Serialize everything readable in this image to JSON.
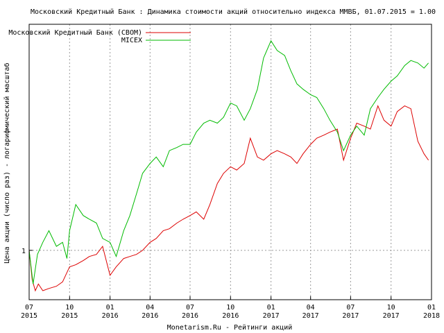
{
  "chart_data": {
    "type": "line",
    "title": "Московский Кредитный Банк : Динамика стоимости акций относительно индекса ММВБ, 01.07.2015 = 1.00",
    "xlabel": "Monetarism.Ru - Рейтинги акций",
    "ylabel": "Цена акции (число раз) - логарифмический масштаб",
    "y_scale": "log",
    "ylim": [
      0.885,
      1.75
    ],
    "xlim": [
      "2015-07-01",
      "2018-01-01"
    ],
    "y_ticks": [
      {
        "value": 1,
        "label": "1"
      }
    ],
    "x_ticks": [
      {
        "date": "2015-07-01",
        "label": "07\n2015"
      },
      {
        "date": "2015-10-01",
        "label": "10\n2015"
      },
      {
        "date": "2016-01-01",
        "label": "01\n2016"
      },
      {
        "date": "2016-04-01",
        "label": "04\n2016"
      },
      {
        "date": "2016-07-01",
        "label": "07\n2016"
      },
      {
        "date": "2016-10-01",
        "label": "10\n2016"
      },
      {
        "date": "2017-01-01",
        "label": "01\n2017"
      },
      {
        "date": "2017-04-01",
        "label": "04\n2017"
      },
      {
        "date": "2017-07-01",
        "label": "07\n2017"
      },
      {
        "date": "2017-10-01",
        "label": "10\n2017"
      },
      {
        "date": "2018-01-01",
        "label": "01\n2018"
      }
    ],
    "grid": true,
    "legend_position": "top-left",
    "series": [
      {
        "name": "Московский Кредитный Банк (CBOM)",
        "color": "#dd0000",
        "points": [
          [
            "2015-07-01",
            1.0
          ],
          [
            "2015-07-08",
            0.93
          ],
          [
            "2015-07-15",
            0.905
          ],
          [
            "2015-07-22",
            0.92
          ],
          [
            "2015-08-01",
            0.905
          ],
          [
            "2015-08-15",
            0.91
          ],
          [
            "2015-09-01",
            0.915
          ],
          [
            "2015-09-15",
            0.925
          ],
          [
            "2015-10-01",
            0.96
          ],
          [
            "2015-10-15",
            0.965
          ],
          [
            "2015-11-01",
            0.975
          ],
          [
            "2015-11-15",
            0.985
          ],
          [
            "2015-12-01",
            0.99
          ],
          [
            "2015-12-15",
            1.01
          ],
          [
            "2016-01-01",
            0.94
          ],
          [
            "2016-01-15",
            0.96
          ],
          [
            "2016-02-01",
            0.98
          ],
          [
            "2016-02-15",
            0.985
          ],
          [
            "2016-03-01",
            0.99
          ],
          [
            "2016-03-15",
            1.0
          ],
          [
            "2016-04-01",
            1.02
          ],
          [
            "2016-04-15",
            1.03
          ],
          [
            "2016-05-01",
            1.05
          ],
          [
            "2016-05-15",
            1.055
          ],
          [
            "2016-06-01",
            1.07
          ],
          [
            "2016-06-15",
            1.08
          ],
          [
            "2016-07-01",
            1.09
          ],
          [
            "2016-07-15",
            1.1
          ],
          [
            "2016-08-01",
            1.08
          ],
          [
            "2016-08-15",
            1.12
          ],
          [
            "2016-09-01",
            1.18
          ],
          [
            "2016-09-15",
            1.21
          ],
          [
            "2016-10-01",
            1.23
          ],
          [
            "2016-10-15",
            1.22
          ],
          [
            "2016-11-01",
            1.24
          ],
          [
            "2016-11-15",
            1.32
          ],
          [
            "2016-12-01",
            1.26
          ],
          [
            "2016-12-15",
            1.25
          ],
          [
            "2017-01-01",
            1.27
          ],
          [
            "2017-01-15",
            1.28
          ],
          [
            "2017-02-01",
            1.27
          ],
          [
            "2017-02-15",
            1.26
          ],
          [
            "2017-03-01",
            1.24
          ],
          [
            "2017-03-15",
            1.27
          ],
          [
            "2017-04-01",
            1.3
          ],
          [
            "2017-04-15",
            1.32
          ],
          [
            "2017-05-01",
            1.33
          ],
          [
            "2017-05-15",
            1.34
          ],
          [
            "2017-06-01",
            1.35
          ],
          [
            "2017-06-15",
            1.25
          ],
          [
            "2017-07-01",
            1.32
          ],
          [
            "2017-07-15",
            1.37
          ],
          [
            "2017-08-01",
            1.36
          ],
          [
            "2017-08-15",
            1.35
          ],
          [
            "2017-09-01",
            1.43
          ],
          [
            "2017-09-15",
            1.38
          ],
          [
            "2017-10-01",
            1.36
          ],
          [
            "2017-10-15",
            1.41
          ],
          [
            "2017-11-01",
            1.43
          ],
          [
            "2017-11-15",
            1.42
          ],
          [
            "2017-12-01",
            1.31
          ],
          [
            "2017-12-15",
            1.27
          ],
          [
            "2017-12-25",
            1.25
          ]
        ]
      },
      {
        "name": "MICEX",
        "color": "#00bb00",
        "points": [
          [
            "2015-07-01",
            1.0
          ],
          [
            "2015-07-10",
            0.92
          ],
          [
            "2015-07-20",
            0.99
          ],
          [
            "2015-08-01",
            1.02
          ],
          [
            "2015-08-15",
            1.05
          ],
          [
            "2015-09-01",
            1.01
          ],
          [
            "2015-09-15",
            1.02
          ],
          [
            "2015-09-25",
            0.98
          ],
          [
            "2015-10-01",
            1.05
          ],
          [
            "2015-10-15",
            1.12
          ],
          [
            "2015-11-01",
            1.09
          ],
          [
            "2015-11-15",
            1.08
          ],
          [
            "2015-12-01",
            1.07
          ],
          [
            "2015-12-15",
            1.03
          ],
          [
            "2016-01-01",
            1.02
          ],
          [
            "2016-01-15",
            0.985
          ],
          [
            "2016-02-01",
            1.05
          ],
          [
            "2016-02-15",
            1.09
          ],
          [
            "2016-03-01",
            1.15
          ],
          [
            "2016-03-15",
            1.21
          ],
          [
            "2016-04-01",
            1.24
          ],
          [
            "2016-04-15",
            1.26
          ],
          [
            "2016-05-01",
            1.23
          ],
          [
            "2016-05-15",
            1.28
          ],
          [
            "2016-06-01",
            1.29
          ],
          [
            "2016-06-15",
            1.3
          ],
          [
            "2016-07-01",
            1.3
          ],
          [
            "2016-07-15",
            1.34
          ],
          [
            "2016-08-01",
            1.37
          ],
          [
            "2016-08-15",
            1.38
          ],
          [
            "2016-09-01",
            1.37
          ],
          [
            "2016-09-15",
            1.39
          ],
          [
            "2016-10-01",
            1.44
          ],
          [
            "2016-10-15",
            1.43
          ],
          [
            "2016-11-01",
            1.38
          ],
          [
            "2016-11-15",
            1.42
          ],
          [
            "2016-12-01",
            1.49
          ],
          [
            "2016-12-15",
            1.61
          ],
          [
            "2017-01-01",
            1.68
          ],
          [
            "2017-01-15",
            1.64
          ],
          [
            "2017-02-01",
            1.62
          ],
          [
            "2017-02-15",
            1.56
          ],
          [
            "2017-03-01",
            1.51
          ],
          [
            "2017-03-15",
            1.49
          ],
          [
            "2017-04-01",
            1.47
          ],
          [
            "2017-04-15",
            1.46
          ],
          [
            "2017-05-01",
            1.42
          ],
          [
            "2017-05-15",
            1.38
          ],
          [
            "2017-06-01",
            1.34
          ],
          [
            "2017-06-15",
            1.28
          ],
          [
            "2017-07-01",
            1.33
          ],
          [
            "2017-07-15",
            1.36
          ],
          [
            "2017-08-01",
            1.33
          ],
          [
            "2017-08-15",
            1.42
          ],
          [
            "2017-09-01",
            1.46
          ],
          [
            "2017-09-15",
            1.49
          ],
          [
            "2017-10-01",
            1.52
          ],
          [
            "2017-10-15",
            1.54
          ],
          [
            "2017-11-01",
            1.58
          ],
          [
            "2017-11-15",
            1.6
          ],
          [
            "2017-12-01",
            1.59
          ],
          [
            "2017-12-15",
            1.57
          ],
          [
            "2017-12-25",
            1.59
          ]
        ]
      }
    ]
  }
}
